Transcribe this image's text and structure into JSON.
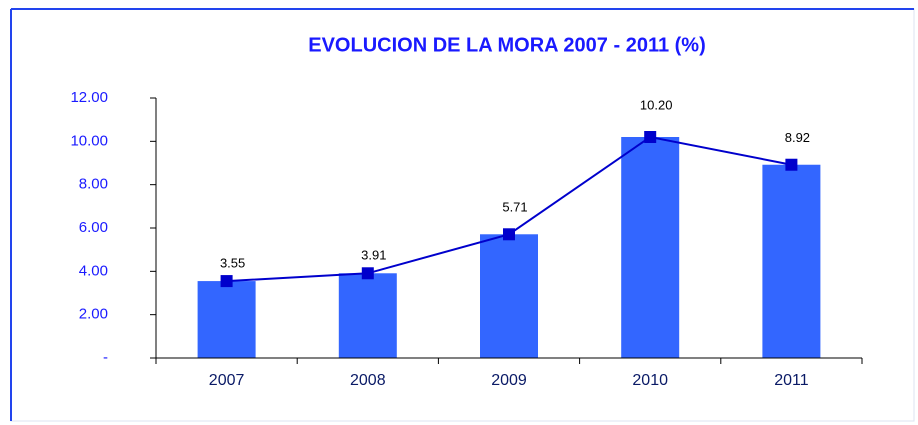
{
  "chart_data": {
    "type": "bar",
    "title": "EVOLUCION DE LA MORA 2007 - 2011 (%)",
    "categories": [
      "2007",
      "2008",
      "2009",
      "2010",
      "2011"
    ],
    "series": [
      {
        "type": "bar",
        "color": "#3366ff",
        "values": [
          3.55,
          3.91,
          5.71,
          10.2,
          8.92
        ]
      },
      {
        "type": "line",
        "color": "#0000cc",
        "values": [
          3.55,
          3.91,
          5.71,
          10.2,
          8.92
        ],
        "value_labels": [
          "3.55",
          "3.91",
          "5.71",
          "10.20",
          "8.92"
        ]
      }
    ],
    "ylim": [
      0,
      12
    ],
    "yticks": [
      {
        "value": 0,
        "label": "-"
      },
      {
        "value": 2,
        "label": "2.00"
      },
      {
        "value": 4,
        "label": "4.00"
      },
      {
        "value": 6,
        "label": "6.00"
      },
      {
        "value": 8,
        "label": "8.00"
      },
      {
        "value": 10,
        "label": "10.00"
      },
      {
        "value": 12,
        "label": "12.00"
      }
    ],
    "grid": false
  }
}
